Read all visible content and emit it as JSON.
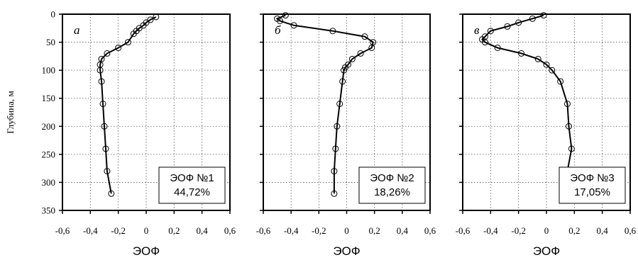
{
  "chart_data": [
    {
      "type": "line",
      "panel_letter": "а",
      "ylabel": "Глубина, м",
      "xlabel": "ЭОФ",
      "xlim": [
        -0.6,
        0.6
      ],
      "ylim": [
        350,
        0
      ],
      "x_ticks": [
        "-0,6",
        "-0,4",
        "-0,2",
        "0",
        "0,2",
        "0,4",
        "0,6"
      ],
      "y_ticks": [
        "0",
        "50",
        "100",
        "150",
        "200",
        "250",
        "300",
        "350"
      ],
      "grid": true,
      "box_label": "ЭОФ №1",
      "box_value": "44,72%",
      "series": [
        {
          "x": [
            0.07,
            0.03,
            0.0,
            -0.02,
            -0.05,
            -0.07,
            -0.09,
            -0.13,
            -0.2,
            -0.28,
            -0.32,
            -0.33,
            -0.33,
            -0.32,
            -0.31,
            -0.3,
            -0.29,
            -0.28,
            -0.25
          ],
          "y": [
            5,
            10,
            15,
            20,
            25,
            30,
            35,
            50,
            60,
            70,
            80,
            90,
            100,
            120,
            160,
            200,
            240,
            280,
            320
          ]
        }
      ]
    },
    {
      "type": "line",
      "panel_letter": "б",
      "xlabel": "ЭОФ",
      "xlim": [
        -0.6,
        0.6
      ],
      "ylim": [
        350,
        0
      ],
      "x_ticks": [
        "-0,6",
        "-0,4",
        "-0,2",
        "0",
        "0,2",
        "0,4",
        "0,6"
      ],
      "grid": true,
      "box_label": "ЭОФ №2",
      "box_value": "18,26%",
      "series": [
        {
          "x": [
            -0.44,
            -0.5,
            -0.48,
            -0.38,
            -0.1,
            0.13,
            0.19,
            0.18,
            0.1,
            0.04,
            0.01,
            -0.01,
            -0.02,
            -0.03,
            -0.05,
            -0.07,
            -0.08,
            -0.09,
            -0.09
          ],
          "y": [
            2,
            8,
            12,
            20,
            30,
            40,
            50,
            60,
            70,
            80,
            90,
            95,
            100,
            120,
            160,
            200,
            240,
            280,
            320
          ]
        }
      ]
    },
    {
      "type": "line",
      "panel_letter": "в",
      "xlabel": "ЭОФ",
      "xlim": [
        -0.6,
        0.6
      ],
      "ylim": [
        350,
        0
      ],
      "x_ticks": [
        "-0,6",
        "-0,4",
        "-0,2",
        "0",
        "0,2",
        "0,4",
        "0,6"
      ],
      "grid": true,
      "box_label": "ЭОФ №3",
      "box_value": "17,05%",
      "series": [
        {
          "x": [
            -0.02,
            -0.1,
            -0.2,
            -0.28,
            -0.4,
            -0.44,
            -0.46,
            -0.44,
            -0.35,
            -0.18,
            -0.06,
            0.0,
            0.04,
            0.1,
            0.15,
            0.16,
            0.18,
            0.15,
            0.12
          ],
          "y": [
            2,
            8,
            15,
            22,
            30,
            40,
            45,
            50,
            60,
            70,
            80,
            90,
            100,
            120,
            160,
            200,
            240,
            280,
            320
          ]
        }
      ]
    }
  ]
}
